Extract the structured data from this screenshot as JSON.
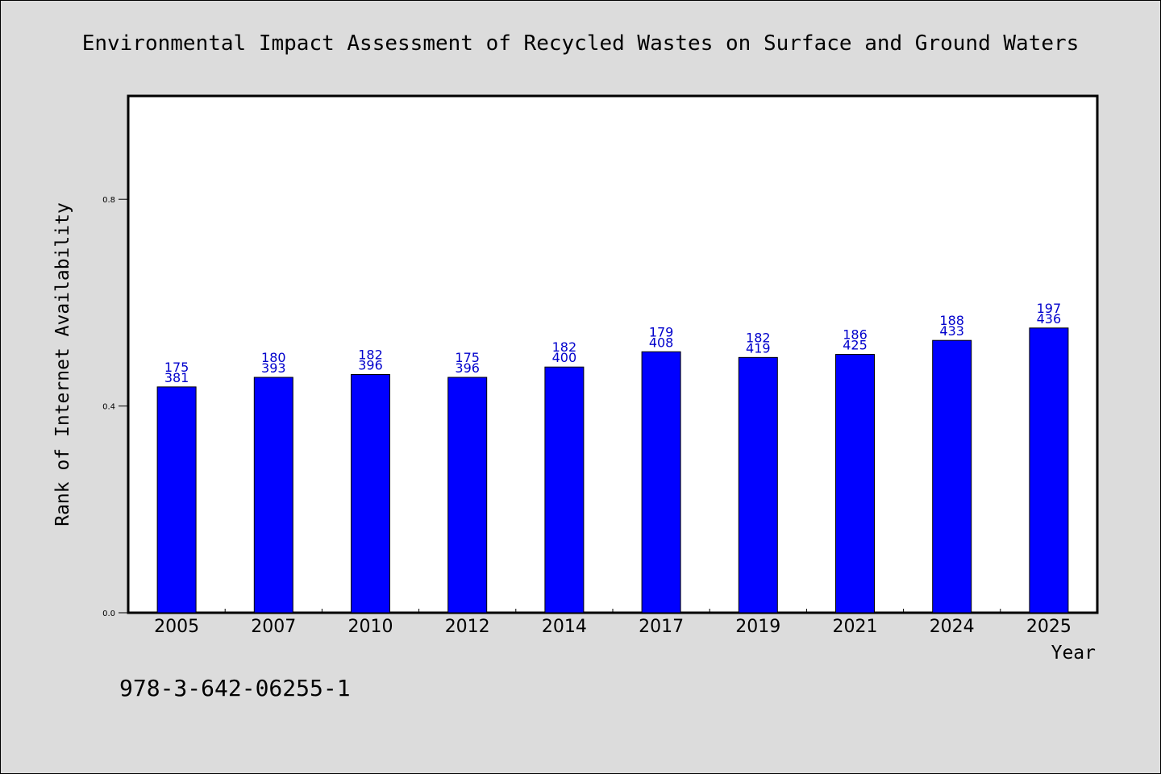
{
  "chart_data": {
    "type": "bar",
    "title": "Environmental Impact Assessment of Recycled Wastes on Surface and Ground Waters",
    "xlabel": "Year",
    "ylabel": "Rank of Internet Availability",
    "categories": [
      "2005",
      "2007",
      "2010",
      "2012",
      "2014",
      "2017",
      "2019",
      "2021",
      "2024",
      "2025"
    ],
    "values": [
      0.437,
      0.4555,
      0.461,
      0.4555,
      0.4755,
      0.505,
      0.494,
      0.5,
      0.527,
      0.551
    ],
    "labels_top": [
      "175",
      "180",
      "182",
      "175",
      "182",
      "179",
      "182",
      "186",
      "188",
      "197"
    ],
    "labels_bottom": [
      "381",
      "393",
      "396",
      "396",
      "400",
      "408",
      "419",
      "425",
      "433",
      "436"
    ],
    "ylim": [
      0,
      1.0
    ],
    "yticks": [
      0.0,
      0.4,
      0.8
    ],
    "ytick_labels": [
      "0.0",
      "0.4",
      "0.8"
    ],
    "bar_color": "#0000ff",
    "label_color": "#0000cc",
    "grid": false
  },
  "caption": "978-3-642-06255-1"
}
